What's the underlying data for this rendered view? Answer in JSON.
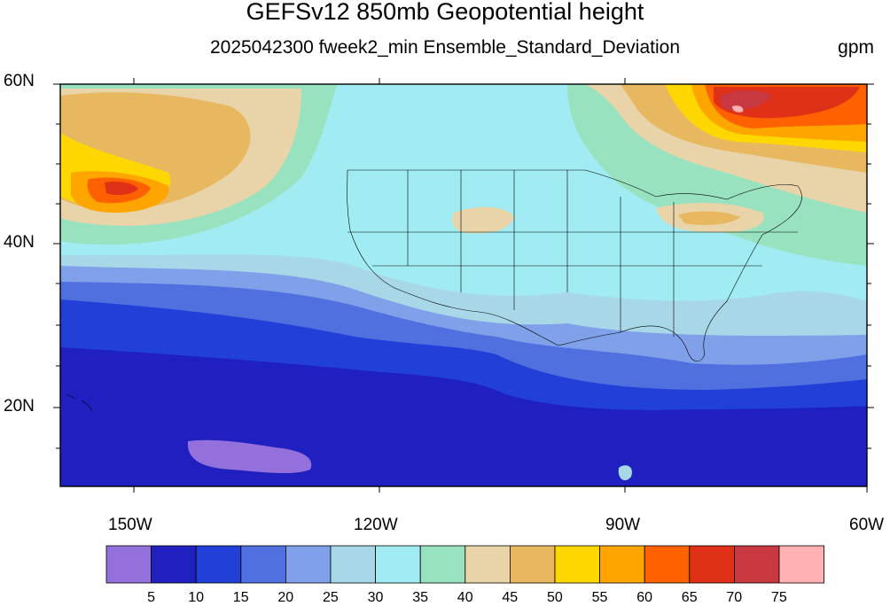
{
  "title": "GEFSv12 850mb Geopotential height",
  "subtitle": "2025042300 fweek2_min Ensemble_Standard_Deviation",
  "units": "gpm",
  "lat_labels": [
    "60N",
    "40N",
    "20N"
  ],
  "lon_labels": [
    "150W",
    "120W",
    "90W",
    "60W"
  ],
  "colorbar": {
    "labels": [
      "5",
      "10",
      "15",
      "20",
      "25",
      "30",
      "35",
      "40",
      "45",
      "50",
      "55",
      "60",
      "65",
      "70",
      "75"
    ],
    "colors": [
      "#9370db",
      "#2020c0",
      "#2040d8",
      "#5070e0",
      "#80a0ea",
      "#a8d8e8",
      "#a0ecf2",
      "#98e2c0",
      "#e8d4a8",
      "#e8b860",
      "#ffd700",
      "#ffa500",
      "#ff6000",
      "#e03018",
      "#c83840",
      "#ffb0b0"
    ]
  }
}
